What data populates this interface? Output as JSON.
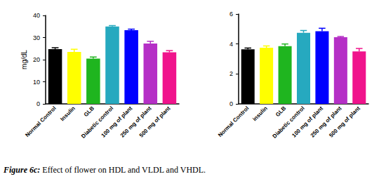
{
  "caption": "Figure 6c: Effect of flower on HDL and VLDL and VHDL.",
  "chart_data": [
    {
      "type": "bar",
      "y_label": "mg/dL",
      "categories": [
        "Normal Control",
        "Insulin",
        "GLB",
        "Diabetic control",
        "100 mg of plant",
        "250 mg of plant",
        "500 mg of plant"
      ],
      "values": [
        24.8,
        23.5,
        20.5,
        35.0,
        33.3,
        27.3,
        23.3
      ],
      "errors": [
        0.6,
        1.2,
        0.7,
        0.4,
        0.5,
        1.0,
        0.8
      ],
      "colors": [
        "#000000",
        "#ffff00",
        "#1fb51f",
        "#26a9bf",
        "#0000ff",
        "#b52fc6",
        "#f0148c"
      ],
      "ylim": [
        0,
        40
      ],
      "yticks": [
        0,
        10,
        20,
        30,
        40
      ],
      "grid": false
    },
    {
      "type": "bar",
      "categories": [
        "Normal Control",
        "insulin",
        "GLB",
        "Diabetic control",
        "100 mg of plant",
        "250 mg of plant",
        "500 mg of plant"
      ],
      "values": [
        3.65,
        3.75,
        3.85,
        4.75,
        4.85,
        4.45,
        3.5
      ],
      "errors": [
        0.08,
        0.12,
        0.15,
        0.15,
        0.2,
        0.05,
        0.2
      ],
      "colors": [
        "#000000",
        "#ffff00",
        "#1fb51f",
        "#26a9bf",
        "#0000ff",
        "#b52fc6",
        "#f0148c"
      ],
      "ylim": [
        0,
        6
      ],
      "yticks": [
        0,
        2,
        4,
        6
      ],
      "grid": false
    }
  ]
}
